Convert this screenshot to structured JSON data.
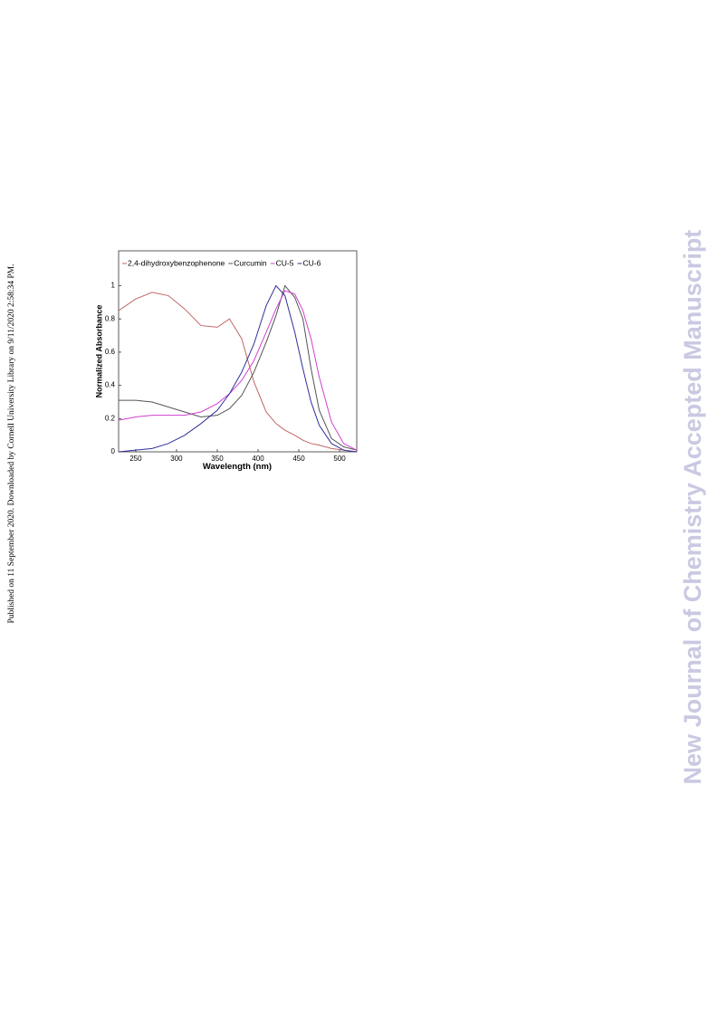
{
  "page": {
    "left_note": "Published on 11 September 2020. Downloaded by Cornell University Library on 9/11/2020 2:58:34 PM.",
    "right_note": "New Journal of Chemistry Accepted Manuscript"
  },
  "chart_data": {
    "type": "line",
    "x_label": "Wavelength (nm)",
    "y_label": "Normalized Absorbance",
    "x": [
      229,
      250,
      270,
      290,
      310,
      330,
      350,
      365,
      380,
      395,
      410,
      422,
      433,
      445,
      455,
      465,
      475,
      490,
      505,
      521
    ],
    "series": [
      {
        "name": "2,4-dihydroxybenzophenone",
        "color": "#c06666",
        "values": [
          0.85,
          0.92,
          0.96,
          0.94,
          0.86,
          0.76,
          0.75,
          0.8,
          0.68,
          0.42,
          0.24,
          0.17,
          0.13,
          0.1,
          0.07,
          0.05,
          0.04,
          0.02,
          0.01,
          0
        ]
      },
      {
        "name": "Curcumin",
        "color": "#555555",
        "values": [
          0.31,
          0.31,
          0.3,
          0.27,
          0.24,
          0.21,
          0.22,
          0.26,
          0.34,
          0.48,
          0.66,
          0.82,
          1.0,
          0.93,
          0.8,
          0.5,
          0.25,
          0.08,
          0.03,
          0.01
        ]
      },
      {
        "name": "CU-5",
        "color": "#d040d0",
        "values": [
          0.19,
          0.21,
          0.22,
          0.22,
          0.22,
          0.24,
          0.29,
          0.35,
          0.43,
          0.55,
          0.72,
          0.86,
          0.97,
          0.95,
          0.85,
          0.68,
          0.45,
          0.18,
          0.05,
          0.01
        ]
      },
      {
        "name": "CU-6",
        "color": "#30309a",
        "values": [
          0,
          0.01,
          0.02,
          0.05,
          0.1,
          0.17,
          0.25,
          0.35,
          0.48,
          0.65,
          0.88,
          1.0,
          0.94,
          0.72,
          0.5,
          0.3,
          0.16,
          0.05,
          0.01,
          0
        ]
      }
    ],
    "xlim": [
      229,
      521
    ],
    "xticks": [
      250,
      300,
      350,
      400,
      450,
      500
    ],
    "ylim": [
      0,
      1.21
    ],
    "yticks": [
      0,
      0.2,
      0.4,
      0.6,
      0.8,
      1
    ]
  }
}
